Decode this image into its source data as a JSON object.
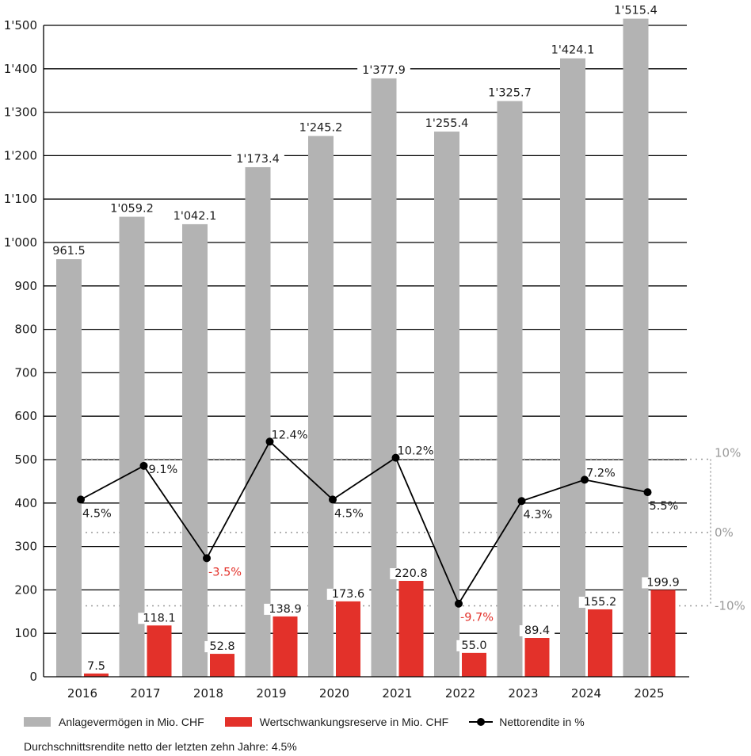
{
  "chart_data": {
    "type": "bar",
    "title": "",
    "xlabel": "",
    "ylabel": "",
    "categories": [
      "2016",
      "2017",
      "2018",
      "2019",
      "2020",
      "2021",
      "2022",
      "2023",
      "2024",
      "2025"
    ],
    "ylim": [
      0,
      1500
    ],
    "y_ticks": [
      0,
      100,
      200,
      300,
      400,
      500,
      600,
      700,
      800,
      900,
      1000,
      1100,
      1200,
      1300,
      1400,
      1500
    ],
    "y_tick_labels": [
      "0",
      "100",
      "200",
      "300",
      "400",
      "500",
      "600",
      "700",
      "800",
      "900",
      "1'000",
      "1'100",
      "1'200",
      "1'300",
      "1'400",
      "1'500"
    ],
    "secondary_ylim": [
      -10,
      10
    ],
    "secondary_ticks": [
      10,
      0,
      -10
    ],
    "secondary_tick_labels": [
      "10%",
      "0%",
      "-10%"
    ],
    "grid": true,
    "legend_position": "bottom",
    "series": [
      {
        "name": "Anlagevermögen in Mio. CHF",
        "type": "bar",
        "color": "#b3b3b3",
        "values": [
          961.5,
          1059.2,
          1042.1,
          1173.4,
          1245.2,
          1377.9,
          1255.4,
          1325.7,
          1424.1,
          1515.4
        ],
        "labels": [
          "961.5",
          "1'059.2",
          "1'042.1",
          "1'173.4",
          "1'245.2",
          "1'377.9",
          "1'255.4",
          "1'325.7",
          "1'424.1",
          "1'515.4"
        ]
      },
      {
        "name": "Wertschwankungsreserve in Mio. CHF",
        "type": "bar",
        "color": "#e3312a",
        "values": [
          7.5,
          118.1,
          52.8,
          138.9,
          173.6,
          220.8,
          55.0,
          89.4,
          155.2,
          199.9
        ],
        "labels": [
          "7.5",
          "118.1",
          "52.8",
          "138.9",
          "173.6",
          "220.8",
          "55.0",
          "89.4",
          "155.2",
          "199.9"
        ]
      },
      {
        "name": "Nettorendite in %",
        "type": "line",
        "axis": "secondary",
        "color": "#000000",
        "values": [
          4.5,
          9.1,
          -3.5,
          12.4,
          4.5,
          10.2,
          -9.7,
          4.3,
          7.2,
          5.5
        ],
        "labels": [
          "4.5%",
          "9.1%",
          "-3.5%",
          "12.4%",
          "4.5%",
          "10.2%",
          "-9.7%",
          "4.3%",
          "7.2%",
          "5.5%"
        ]
      }
    ],
    "annotations": [
      "Durchschnittsrendite netto der letzten zehn Jahre: 4.5%"
    ]
  },
  "legend": {
    "items": [
      {
        "label": "Anlagevermögen in Mio. CHF",
        "color": "#b3b3b3"
      },
      {
        "label": "Wertschwankungsreserve in Mio. CHF",
        "color": "#e3312a"
      },
      {
        "label": "Nettorendite in %",
        "color": "#000000"
      }
    ]
  },
  "footnote": "Durchschnittsrendite netto der letzten zehn Jahre: 4.5%"
}
